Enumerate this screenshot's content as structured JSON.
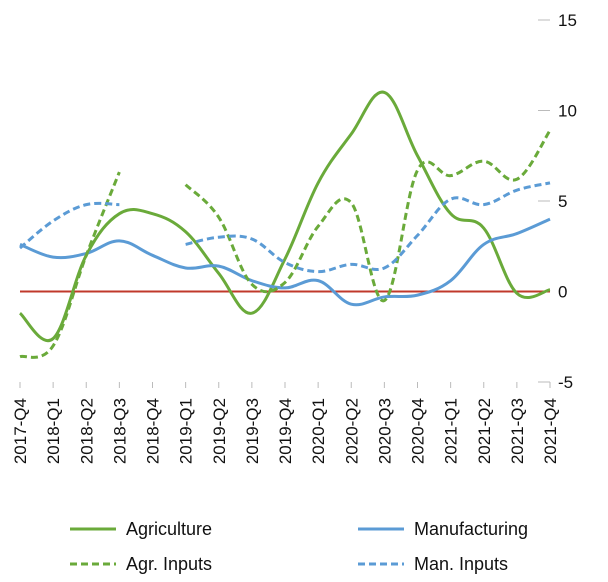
{
  "chart_data": {
    "type": "line",
    "title": "",
    "xlabel": "",
    "ylabel": "",
    "ylim": [
      -5,
      15
    ],
    "yticks": [
      -5,
      0,
      5,
      10,
      15
    ],
    "y_axis_side": "right",
    "categories": [
      "2017-Q4",
      "2018-Q1",
      "2018-Q2",
      "2018-Q3",
      "2018-Q4",
      "2019-Q1",
      "2019-Q2",
      "2019-Q3",
      "2019-Q4",
      "2020-Q1",
      "2020-Q2",
      "2020-Q3",
      "2020-Q4",
      "2021-Q1",
      "2021-Q2",
      "2021-Q3",
      "2021-Q4"
    ],
    "series": [
      {
        "name": "Agriculture",
        "style": "solid",
        "color": "#6aaa3a",
        "values": [
          -1.2,
          -2.6,
          2.0,
          4.3,
          4.3,
          3.3,
          1.0,
          -1.2,
          1.8,
          6.0,
          8.7,
          11.0,
          7.5,
          4.3,
          3.5,
          -0.1,
          0.1
        ]
      },
      {
        "name": "Manufacturing",
        "style": "solid",
        "color": "#5b9bd5",
        "values": [
          2.6,
          1.9,
          2.1,
          2.8,
          2.0,
          1.3,
          1.4,
          0.6,
          0.2,
          0.6,
          -0.7,
          -0.3,
          -0.2,
          0.6,
          2.6,
          3.2,
          4.0
        ]
      },
      {
        "name": "Agr. Inputs",
        "style": "dashed",
        "color": "#6aaa3a",
        "values": [
          -3.6,
          -3.0,
          2.0,
          6.6,
          null,
          5.9,
          4.1,
          0.4,
          0.5,
          3.6,
          4.9,
          -0.5,
          6.7,
          6.4,
          7.2,
          6.2,
          8.9
        ]
      },
      {
        "name": "Man. Inputs",
        "style": "dashed",
        "color": "#5b9bd5",
        "values": [
          2.4,
          3.9,
          4.8,
          4.8,
          null,
          2.6,
          3.0,
          2.9,
          1.6,
          1.1,
          1.5,
          1.3,
          3.1,
          5.1,
          4.8,
          5.6,
          6.0
        ]
      }
    ],
    "reference_line": {
      "y": 0,
      "color": "#c0392b"
    },
    "grid": false,
    "legend_placement": "bottom"
  }
}
